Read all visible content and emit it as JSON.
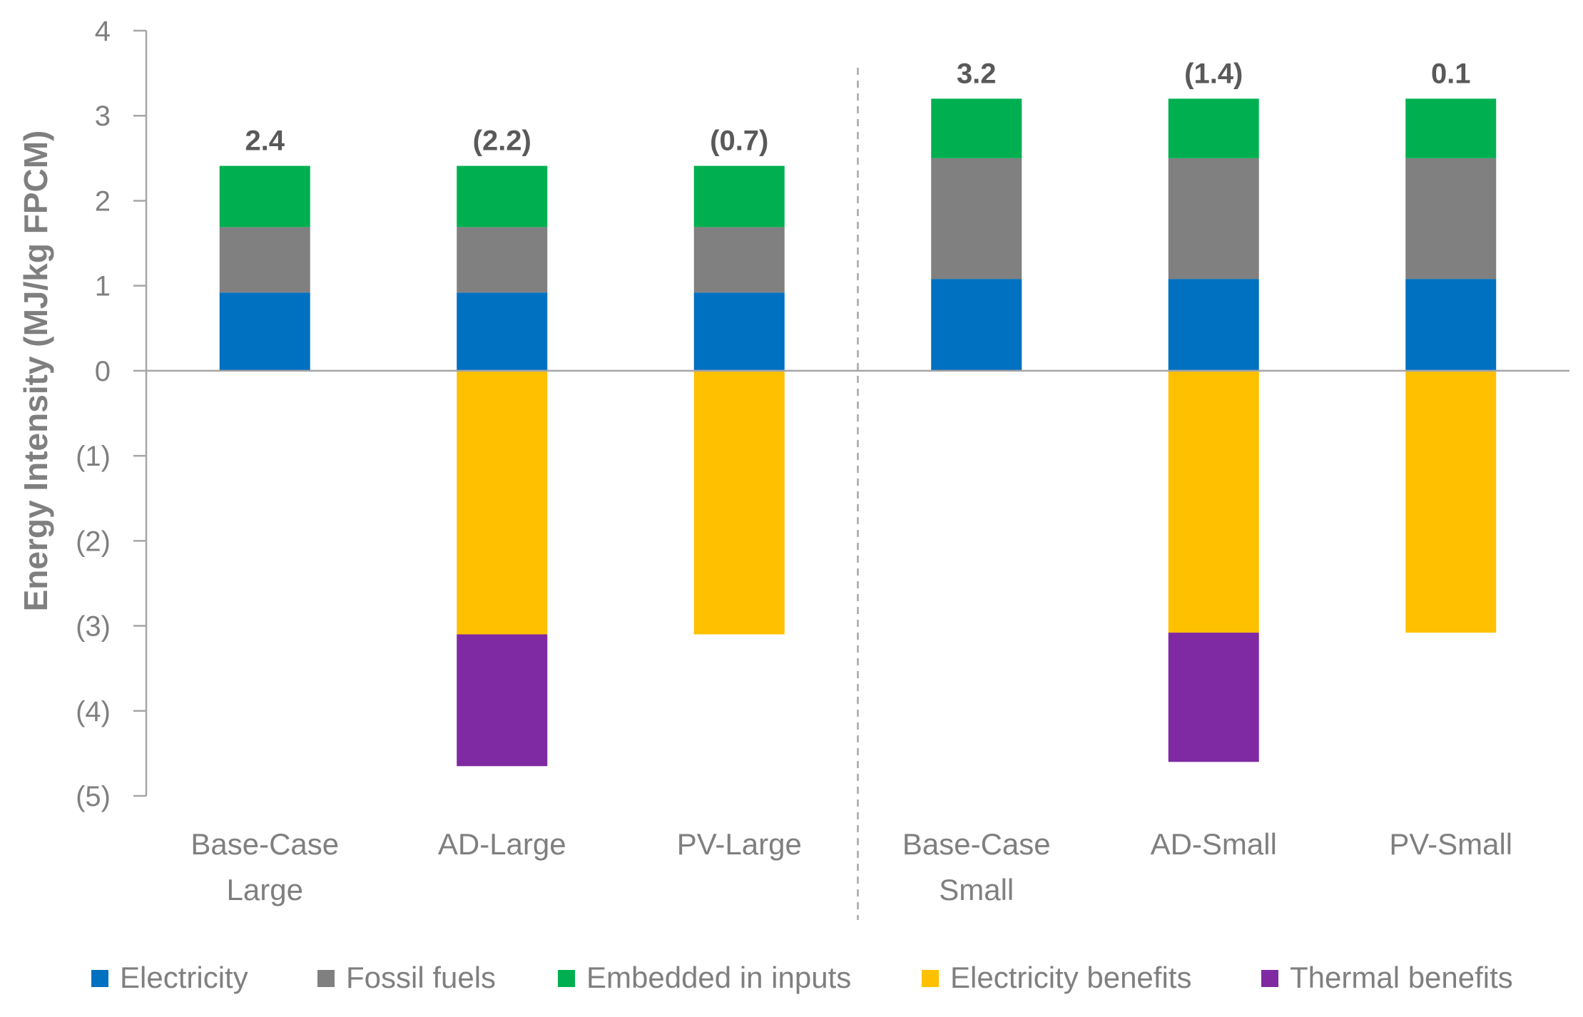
{
  "chart_data": {
    "type": "bar",
    "stacked": true,
    "title": "",
    "xlabel": "",
    "ylabel": "Energy Intensity (MJ/kg FPCM)",
    "ylim": [
      -5,
      4
    ],
    "yticks": [
      4,
      3,
      2,
      1,
      0,
      -1,
      -2,
      -3,
      -4,
      -5
    ],
    "ytick_labels": [
      "4",
      "3",
      "2",
      "1",
      "0",
      "(1)",
      "(2)",
      "(3)",
      "(4)",
      "(5)"
    ],
    "grid": false,
    "categories": [
      [
        "Base-Case",
        "Large"
      ],
      [
        "AD-Large"
      ],
      [
        "PV-Large"
      ],
      [
        "Base-Case",
        "Small"
      ],
      [
        "AD-Small"
      ],
      [
        "PV-Small"
      ]
    ],
    "divider_after_category": 2,
    "series": [
      {
        "name": "Electricity",
        "color": "#0070c0",
        "values": [
          0.92,
          0.92,
          0.92,
          1.08,
          1.08,
          1.08
        ]
      },
      {
        "name": "Fossil fuels",
        "color": "#808080",
        "values": [
          0.77,
          0.77,
          0.77,
          1.42,
          1.42,
          1.42
        ]
      },
      {
        "name": "Embedded in inputs",
        "color": "#00b050",
        "values": [
          0.72,
          0.72,
          0.72,
          0.7,
          0.7,
          0.7
        ]
      },
      {
        "name": "Electricity benefits",
        "color": "#ffc000",
        "values": [
          0,
          -3.1,
          -3.1,
          0,
          -3.08,
          -3.08
        ]
      },
      {
        "name": "Thermal benefits",
        "color": "#7f2aa2",
        "values": [
          0,
          -1.55,
          0,
          0,
          -1.52,
          0
        ]
      }
    ],
    "totals": [
      "2.4",
      "(2.2)",
      "(0.7)",
      "3.2",
      "(1.4)",
      "0.1"
    ],
    "legend_position": "bottom"
  }
}
